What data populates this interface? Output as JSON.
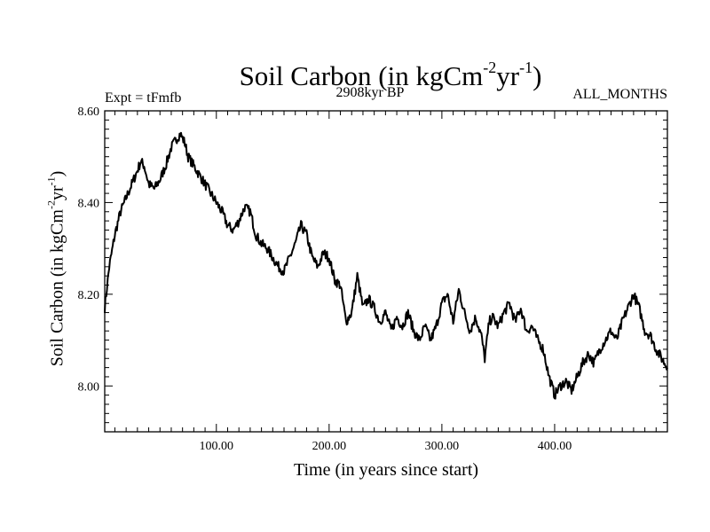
{
  "chart_data": {
    "type": "line",
    "title_main": "Soil Carbon (in kgCm",
    "title_exp1": "-2",
    "title_mid": "yr",
    "title_exp2": "-1",
    "title_end": ")",
    "subtitle_left": "Expt = tFmfb",
    "subtitle_center": "2908kyr BP",
    "subtitle_right": "ALL_MONTHS",
    "xlabel": "Time (in years since start)",
    "ylabel_main": "Soil Carbon (in kgCm",
    "ylabel_exp1": "-2",
    "ylabel_mid": "yr",
    "ylabel_exp2": "-1",
    "ylabel_end": ")",
    "xlim": [
      1,
      500
    ],
    "ylim": [
      7.9,
      8.6
    ],
    "x_ticks": [
      100,
      200,
      300,
      400
    ],
    "x_tick_labels": [
      "100.00",
      "200.00",
      "300.00",
      "400.00"
    ],
    "y_ticks": [
      8.0,
      8.2,
      8.4,
      8.6
    ],
    "y_tick_labels": [
      "8.00",
      "8.20",
      "8.40",
      "8.60"
    ],
    "line_color": "#000000",
    "series": [
      {
        "x": [
          1,
          5,
          10,
          15,
          20,
          25,
          30,
          33,
          36,
          40,
          45,
          50,
          55,
          60,
          65,
          68,
          72,
          75,
          80,
          85,
          90,
          95,
          100,
          105,
          110,
          115,
          120,
          125,
          130,
          135,
          140,
          145,
          150,
          155,
          160,
          165,
          170,
          175,
          180,
          185,
          190,
          195,
          200,
          205,
          210,
          215,
          220,
          225,
          230,
          235,
          240,
          245,
          250,
          255,
          260,
          265,
          270,
          275,
          280,
          285,
          290,
          295,
          300,
          305,
          310,
          315,
          320,
          325,
          330,
          335,
          338,
          342,
          345,
          350,
          355,
          360,
          365,
          370,
          375,
          380,
          385,
          390,
          395,
          400,
          405,
          410,
          415,
          420,
          425,
          430,
          435,
          440,
          445,
          450,
          455,
          460,
          465,
          470,
          475,
          480,
          485,
          490,
          495,
          500
        ],
        "y": [
          8.17,
          8.26,
          8.33,
          8.38,
          8.41,
          8.44,
          8.47,
          8.49,
          8.48,
          8.44,
          8.43,
          8.45,
          8.48,
          8.52,
          8.54,
          8.55,
          8.53,
          8.5,
          8.48,
          8.46,
          8.44,
          8.42,
          8.4,
          8.38,
          8.35,
          8.34,
          8.36,
          8.39,
          8.38,
          8.33,
          8.31,
          8.3,
          8.28,
          8.26,
          8.25,
          8.28,
          8.31,
          8.35,
          8.33,
          8.28,
          8.26,
          8.29,
          8.28,
          8.23,
          8.22,
          8.14,
          8.16,
          8.24,
          8.17,
          8.19,
          8.17,
          8.14,
          8.16,
          8.12,
          8.15,
          8.13,
          8.16,
          8.12,
          8.1,
          8.13,
          8.1,
          8.13,
          8.18,
          8.2,
          8.14,
          8.21,
          8.16,
          8.12,
          8.15,
          8.11,
          8.06,
          8.14,
          8.15,
          8.13,
          8.16,
          8.18,
          8.14,
          8.17,
          8.12,
          8.13,
          8.1,
          8.08,
          8.02,
          7.98,
          8.0,
          8.01,
          7.99,
          8.02,
          8.05,
          8.07,
          8.05,
          8.08,
          8.1,
          8.12,
          8.1,
          8.14,
          8.17,
          8.2,
          8.17,
          8.12,
          8.11,
          8.08,
          8.06,
          8.04
        ]
      }
    ]
  }
}
